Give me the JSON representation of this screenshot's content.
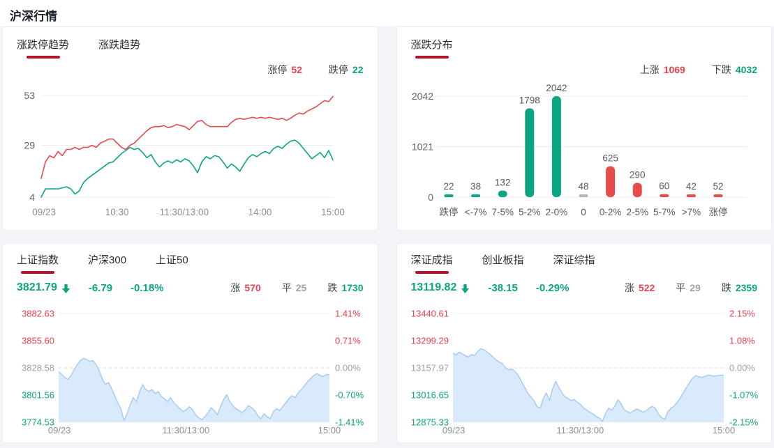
{
  "page": {
    "title": "沪深行情"
  },
  "colors": {
    "red": "#e8414f",
    "teal": "#0ba57e",
    "gray": "#9ca1a8",
    "bar_red": "#e64c4c",
    "bar_teal": "#0ca583",
    "bar_gray": "#b3b6bb",
    "tab_underline": "#b5122b",
    "area_fill": "#d9eafc",
    "area_line": "#a5c9ef",
    "grid_line": "#ededf1",
    "axis_text": "#8a8f96"
  },
  "limit_trend": {
    "tabs": [
      {
        "label": "涨跌停趋势"
      },
      {
        "label": "涨跌趋势"
      }
    ],
    "legend": {
      "up_label": "涨停",
      "up_value": "52",
      "down_label": "跌停",
      "down_value": "22"
    }
  },
  "distribution": {
    "tabs": [
      {
        "label": "涨跌分布"
      }
    ],
    "legend": {
      "up_label": "上涨",
      "up_value": "1069",
      "down_label": "下跌",
      "down_value": "4032"
    }
  },
  "sh_index": {
    "tabs": [
      {
        "label": "上证指数"
      },
      {
        "label": "沪深300"
      },
      {
        "label": "上证50"
      }
    ],
    "value": "3821.79",
    "change": "-6.79",
    "pct": "-0.18%",
    "up_label": "涨",
    "up_value": "570",
    "flat_label": "平",
    "flat_value": "25",
    "down_label": "跌",
    "down_value": "1730"
  },
  "sz_index": {
    "tabs": [
      {
        "label": "深证成指"
      },
      {
        "label": "创业板指"
      },
      {
        "label": "深证综指"
      }
    ],
    "value": "13119.82",
    "change": "-38.15",
    "pct": "-0.29%",
    "up_label": "涨",
    "up_value": "522",
    "flat_label": "平",
    "flat_value": "29",
    "down_label": "跌",
    "down_value": "2359"
  },
  "chart_data": [
    {
      "id": "limit_trend",
      "type": "line",
      "title": "涨跌停趋势",
      "x_ticks": [
        "09/23",
        "10:30",
        "11:30/13:00",
        "14:00",
        "15:00"
      ],
      "y_ticks": [
        4,
        29,
        53
      ],
      "ylim": [
        4,
        53
      ],
      "grid": true,
      "series": [
        {
          "name": "涨停",
          "color": "#e64c4c",
          "values": [
            13,
            21,
            24,
            23,
            26,
            24,
            27,
            27,
            28,
            27,
            28,
            28,
            29,
            28,
            30,
            31,
            32,
            32,
            30,
            28,
            27,
            29,
            30,
            32,
            34,
            36,
            37.5,
            38,
            38,
            38.5,
            37.5,
            38,
            39,
            38.5,
            38,
            36.5,
            38.5,
            40.5,
            41,
            39,
            38,
            38,
            38,
            38,
            38,
            40,
            41.5,
            42,
            41.5,
            42,
            42.5,
            42,
            42.5,
            42,
            42.5,
            42,
            41.5,
            42,
            41,
            42,
            43.5,
            44.5,
            44,
            45.5,
            46.5,
            47.5,
            49,
            50.5,
            50,
            52.5
          ]
        },
        {
          "name": "跌停",
          "color": "#0ca583",
          "values": [
            4,
            8,
            8,
            8,
            8,
            8.5,
            9,
            8,
            5.5,
            7,
            11,
            13,
            14.5,
            16,
            17.5,
            19,
            20.5,
            21,
            23,
            25,
            26.5,
            28,
            27,
            27.5,
            25.5,
            23,
            24.5,
            21,
            18.5,
            20.5,
            21.5,
            20.5,
            22,
            21,
            22.5,
            21.5,
            19,
            15.8,
            21,
            23.5,
            22.5,
            24,
            23.5,
            21,
            18,
            20,
            18.5,
            16.5,
            20,
            23,
            24.5,
            23.5,
            25,
            26,
            25,
            27.5,
            28.5,
            27.5,
            29.5,
            31,
            31.5,
            30,
            27.5,
            25,
            22.5,
            24,
            25.5,
            23,
            26.5,
            22
          ]
        }
      ]
    },
    {
      "id": "distribution",
      "type": "bar",
      "title": "涨跌分布",
      "categories": [
        "跌停",
        "<-7%",
        "7-5%",
        "5-2%",
        "2-0%",
        "0",
        "0-2%",
        "2-5%",
        "5-7%",
        ">7%",
        "涨停"
      ],
      "values": [
        22,
        38,
        132,
        1798,
        2042,
        48,
        625,
        290,
        60,
        42,
        52
      ],
      "bar_colors": [
        "bar_teal",
        "bar_teal",
        "bar_teal",
        "bar_teal",
        "bar_teal",
        "bar_gray",
        "bar_red",
        "bar_red",
        "bar_red",
        "bar_red",
        "bar_red"
      ],
      "y_ticks": [
        0,
        1021,
        2042
      ],
      "ylim": [
        0,
        2042
      ],
      "grid": true
    },
    {
      "id": "sh_index",
      "type": "area",
      "title": "上证指数",
      "x_ticks": [
        "09/23",
        "11:30/13:00",
        "15:00"
      ],
      "y_ticks_left": [
        "3882.63",
        "3855.60",
        "3828.58",
        "3801.56",
        "3774.53"
      ],
      "y_ticks_right": [
        "1.41%",
        "0.71%",
        "0.00%",
        "-0.70%",
        "-1.41%"
      ],
      "tick_colors": [
        "red",
        "red",
        "gray",
        "teal",
        "teal"
      ],
      "ylim": [
        3774.53,
        3882.63
      ],
      "values": [
        3825,
        3822,
        3819,
        3817,
        3821,
        3827,
        3832,
        3836,
        3838,
        3837,
        3835,
        3836,
        3832,
        3826,
        3818,
        3812,
        3814,
        3808,
        3801,
        3794,
        3788,
        3776,
        3783,
        3792,
        3799,
        3795,
        3805,
        3812,
        3807,
        3805,
        3807,
        3803,
        3805,
        3800,
        3798,
        3795,
        3799,
        3794,
        3791,
        3788,
        3785,
        3787,
        3790,
        3787,
        3782,
        3779,
        3777,
        3780,
        3784,
        3789,
        3786,
        3782,
        3790,
        3797,
        3802,
        3795,
        3791,
        3788,
        3786,
        3784,
        3787,
        3791,
        3789,
        3786,
        3781,
        3778,
        3783,
        3780,
        3778,
        3785,
        3788,
        3786,
        3790,
        3794,
        3798,
        3801,
        3799,
        3804,
        3807,
        3811,
        3815,
        3818,
        3821,
        3823,
        3821,
        3820,
        3822,
        3821.79
      ]
    },
    {
      "id": "sz_index",
      "type": "area",
      "title": "深证成指",
      "x_ticks": [
        "09/23",
        "11:30/13:00",
        "15:00"
      ],
      "y_ticks_left": [
        "13440.61",
        "13299.29",
        "13157.97",
        "13016.65",
        "12875.33"
      ],
      "y_ticks_right": [
        "2.15%",
        "1.08%",
        "0.00%",
        "-1.07%",
        "-2.15%"
      ],
      "tick_colors": [
        "red",
        "red",
        "gray",
        "teal",
        "teal"
      ],
      "ylim": [
        12875.33,
        13440.61
      ],
      "values": [
        13235,
        13225,
        13240,
        13230,
        13222,
        13215,
        13228,
        13222,
        13245,
        13258,
        13252,
        13240,
        13228,
        13212,
        13198,
        13188,
        13178,
        13158,
        13148,
        13152,
        13138,
        13118,
        13088,
        13058,
        13028,
        13008,
        12988,
        12958,
        12948,
        12998,
        13028,
        12988,
        13048,
        13088,
        13058,
        13028,
        13008,
        12998,
        12988,
        12994,
        12978,
        12968,
        12948,
        12938,
        12928,
        12918,
        12905,
        12898,
        12880,
        12920,
        12948,
        12938,
        12958,
        12992,
        12972,
        12940,
        12930,
        12924,
        12934,
        12944,
        12938,
        12928,
        12934,
        12948,
        12958,
        12948,
        12918,
        12900,
        12890,
        12928,
        12948,
        12958,
        12978,
        13000,
        13028,
        13055,
        13082,
        13105,
        13118,
        13112,
        13108,
        13115,
        13120,
        13118,
        13115,
        13119,
        13120,
        13119.82
      ]
    }
  ]
}
